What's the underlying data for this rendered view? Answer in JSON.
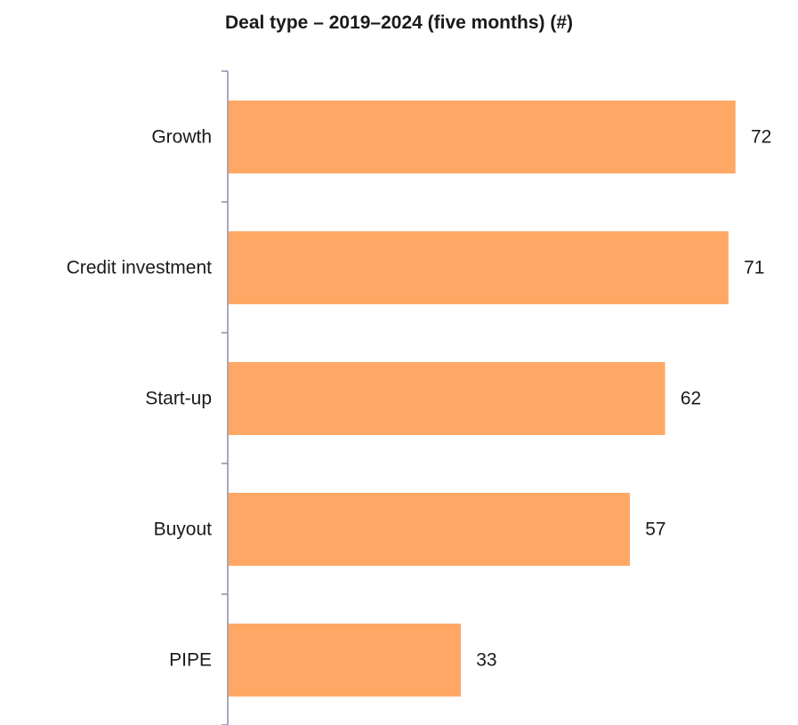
{
  "chart_data": {
    "type": "bar",
    "orientation": "horizontal",
    "title": "Deal type – 2019–2024 (five months) (#)",
    "xlabel": "",
    "ylabel": "",
    "categories": [
      "Growth",
      "Credit investment",
      "Start-up",
      "Buyout",
      "PIPE"
    ],
    "values": [
      72,
      71,
      62,
      57,
      33
    ],
    "xlim": [
      0,
      72
    ],
    "grid": false,
    "legend": "none",
    "bar_color": "#FFA866",
    "axis_color": "#8b8bab"
  }
}
